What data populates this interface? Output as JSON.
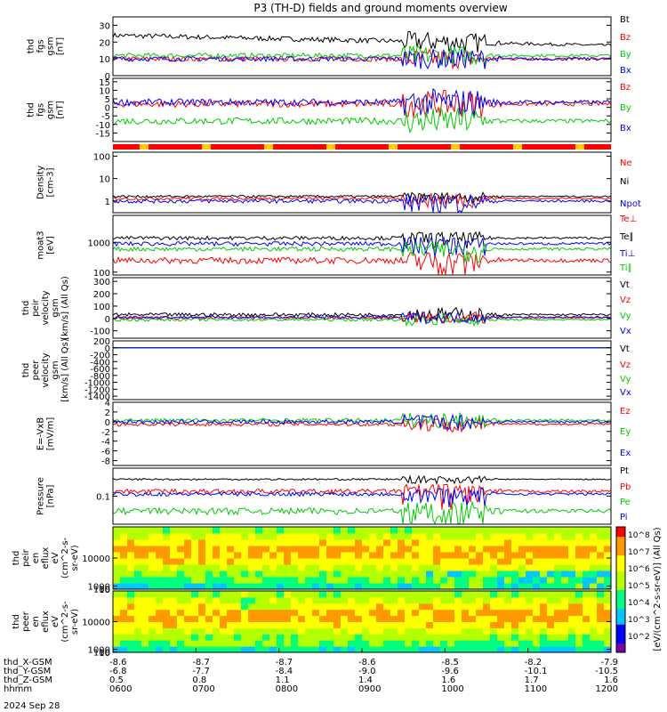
{
  "title": "P3 (TH-D) fields and ground moments overview",
  "date_label": "2024 Sep 28",
  "colorbar": {
    "label": "[eV/(cm^2-s-sr-eV)] (All Qs)",
    "colors": [
      "#ffffff",
      "#7a00aa",
      "#0000ff",
      "#00c8ff",
      "#00ff80",
      "#b4ff00",
      "#ffff00",
      "#ff9900",
      "#ff0000"
    ],
    "ticks": [
      "10^8",
      "10^7",
      "10^6",
      "10^5",
      "10^4",
      "10^3",
      "10^2"
    ]
  },
  "chart_data": [
    {
      "type": "line",
      "ylabel": [
        "thd",
        "fgs",
        "gsm",
        "[nT]"
      ],
      "ylim": [
        0,
        35
      ],
      "yticks": [
        0,
        10,
        20,
        30
      ],
      "series": [
        {
          "name": "Bt",
          "color": "#000000"
        },
        {
          "name": "Bz",
          "color": "#ff0000"
        },
        {
          "name": "By",
          "color": "#00cc00"
        },
        {
          "name": "Bx",
          "color": "#0000ff"
        }
      ]
    },
    {
      "type": "line",
      "ylabel": [
        "thd",
        "fgs",
        "gsm",
        "[nT]"
      ],
      "ylim": [
        -20,
        17
      ],
      "yticks": [
        -15,
        -10,
        -5,
        0,
        5,
        10,
        15
      ],
      "series": [
        {
          "name": "Bz",
          "color": "#ff0000"
        },
        {
          "name": "By",
          "color": "#00cc00"
        },
        {
          "name": "Bx",
          "color": "#0000ff"
        }
      ]
    },
    {
      "type": "line",
      "scale": "log",
      "ylabel": [
        "Density",
        "[cm-3]"
      ],
      "ylim": [
        0.3,
        150
      ],
      "yticks": [
        1,
        10,
        100
      ],
      "series": [
        {
          "name": "Ne",
          "color": "#ff0000"
        },
        {
          "name": "Ni",
          "color": "#000000"
        },
        {
          "name": "Npot",
          "color": "#0000ff"
        }
      ]
    },
    {
      "type": "line",
      "scale": "log",
      "ylabel": [
        "moat3",
        "[eV]"
      ],
      "ylim": [
        80,
        8000
      ],
      "yticks": [
        100,
        1000
      ],
      "series": [
        {
          "name": "Te⊥",
          "color": "#ff0000"
        },
        {
          "name": "Te∥",
          "color": "#000000"
        },
        {
          "name": "Ti⊥",
          "color": "#0000ff"
        },
        {
          "name": "Ti∥",
          "color": "#00cc00"
        }
      ]
    },
    {
      "type": "line",
      "ylabel": [
        "thd",
        "peir",
        "velocity",
        "gsm",
        "[km/s] (All Qs)"
      ],
      "ylim": [
        -160,
        330
      ],
      "yticks": [
        -100,
        0,
        100,
        200,
        300
      ],
      "series": [
        {
          "name": "Vt",
          "color": "#000000"
        },
        {
          "name": "Vz",
          "color": "#ff0000"
        },
        {
          "name": "Vy",
          "color": "#00cc00"
        },
        {
          "name": "Vx",
          "color": "#0000ff"
        }
      ]
    },
    {
      "type": "line",
      "ylabel": [
        "thd",
        "peer",
        "velocity",
        "gsm",
        "[km/s] (All Qs)"
      ],
      "ylim": [
        -1500,
        200
      ],
      "yticks": [
        -1400,
        -1200,
        -1000,
        -800,
        -600,
        -400,
        -200,
        0,
        200
      ],
      "series": [
        {
          "name": "Vt",
          "color": "#000000"
        },
        {
          "name": "Vz",
          "color": "#ff0000"
        },
        {
          "name": "Vy",
          "color": "#00cc00"
        },
        {
          "name": "Vx",
          "color": "#0000ff"
        }
      ]
    },
    {
      "type": "line",
      "ylabel": [
        "E=-VxB",
        "[mV/m]"
      ],
      "ylim": [
        -9,
        4
      ],
      "yticks": [
        -8,
        -6,
        -4,
        -2,
        0,
        2,
        4
      ],
      "series": [
        {
          "name": "Ez",
          "color": "#ff0000"
        },
        {
          "name": "Ey",
          "color": "#00cc00"
        },
        {
          "name": "Ex",
          "color": "#0000ff"
        }
      ]
    },
    {
      "type": "line",
      "scale": "log",
      "ylabel": [
        "Pressure",
        "[nPa]"
      ],
      "ylim": [
        0.01,
        1
      ],
      "yticks": [
        0.1
      ],
      "series": [
        {
          "name": "Pt",
          "color": "#000000"
        },
        {
          "name": "Pb",
          "color": "#ff0000"
        },
        {
          "name": "Pe",
          "color": "#00cc00"
        },
        {
          "name": "Pi",
          "color": "#0000ff"
        }
      ]
    },
    {
      "type": "heatmap",
      "ylabel": [
        "thd",
        "peir",
        "en",
        "eflux",
        "eV",
        "(cm^2-s-",
        "sr-eV)"
      ],
      "ylim": [
        7,
        20000
      ],
      "yticks": [
        10,
        100,
        1000,
        10000
      ]
    },
    {
      "type": "heatmap",
      "ylabel": [
        "thd",
        "peer",
        "en",
        "eflux",
        "eV",
        "(cm^2-s-",
        "sr-eV)"
      ],
      "ylim": [
        7,
        20000
      ],
      "yticks": [
        10,
        100,
        1000,
        10000
      ]
    }
  ],
  "x_axis": {
    "row_labels": [
      "thd_X-GSM",
      "thd_Y-GSM",
      "thd_Z-GSM",
      "hhmm"
    ],
    "ticks": [
      {
        "x": "-8.6",
        "y": "-6.8",
        "z": "0.5",
        "t": "0600"
      },
      {
        "x": "-8.7",
        "y": "-7.7",
        "z": "0.8",
        "t": "0700"
      },
      {
        "x": "-8.7",
        "y": "-8.4",
        "z": "1.1",
        "t": "0800"
      },
      {
        "x": "-8.6",
        "y": "-9.0",
        "z": "1.4",
        "t": "0900"
      },
      {
        "x": "-8.5",
        "y": "-9.6",
        "z": "1.6",
        "t": "1000"
      },
      {
        "x": "-8.2",
        "y": "-10.1",
        "z": "1.7",
        "t": "1100"
      },
      {
        "x": "-7.9",
        "y": "-10.5",
        "z": "1.6",
        "t": "1200"
      }
    ]
  }
}
